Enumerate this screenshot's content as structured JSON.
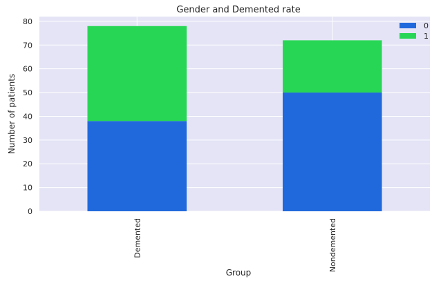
{
  "chart_data": {
    "type": "bar",
    "stacked": true,
    "title": "Gender and Demented rate",
    "xlabel": "Group",
    "ylabel": "Number of patients",
    "categories": [
      "Demented",
      "Nondemented"
    ],
    "series": [
      {
        "name": "0",
        "values": [
          38,
          50
        ],
        "color": "#2069dd"
      },
      {
        "name": "1",
        "values": [
          40,
          22
        ],
        "color": "#28d655"
      }
    ],
    "ylim": [
      0,
      82
    ],
    "yticks": [
      0,
      10,
      20,
      30,
      40,
      50,
      60,
      70,
      80
    ],
    "grid": true,
    "legend_position": "top-right",
    "background_color": "#e4e4f6"
  }
}
